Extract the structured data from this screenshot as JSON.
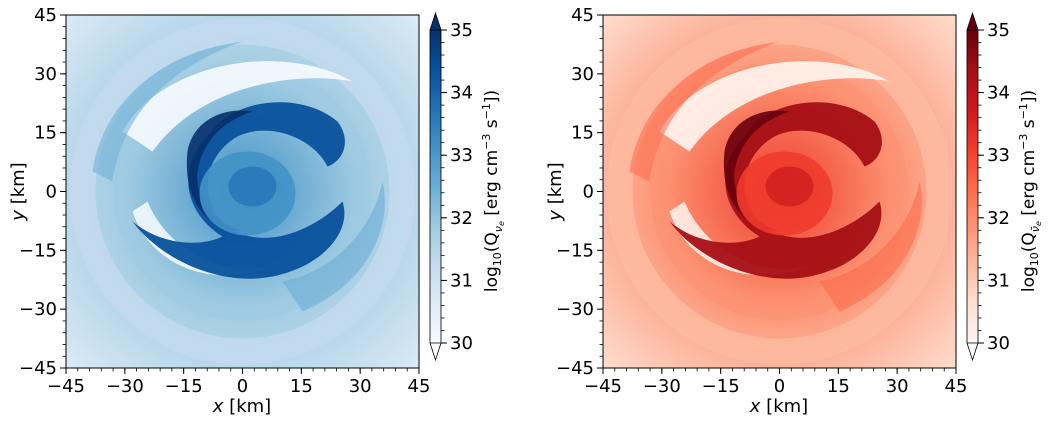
{
  "chart_data": [
    {
      "type": "heatmap",
      "colormap": "Blues",
      "colors": [
        "#f7fbff",
        "#deebf7",
        "#c6dbef",
        "#9ecae1",
        "#6baed6",
        "#4292c6",
        "#2171b5",
        "#08519c",
        "#08306b"
      ],
      "x_ticks": [
        "−45",
        "−30",
        "−15",
        "0",
        "15",
        "30",
        "45"
      ],
      "y_ticks": [
        "−45",
        "−30",
        "−15",
        "0",
        "15",
        "30",
        "45"
      ],
      "xlim": [
        -45,
        45
      ],
      "ylim": [
        -45,
        45
      ],
      "xlabel_var": "x",
      "xlabel_unit": " [km]",
      "ylabel_var": "y",
      "ylabel_unit": " [km]",
      "colorbar": {
        "ticks": [
          "30",
          "31",
          "32",
          "33",
          "34",
          "35"
        ],
        "range": [
          30,
          35
        ],
        "extend": "both",
        "label_log": "log",
        "label_log_sub": "10",
        "label_q_open": "(Q",
        "label_q_sub": "ν",
        "label_q_subsub": "e",
        "label_units": " [erg cm",
        "label_exp1": "−3",
        "label_s": " s",
        "label_exp2": "−1",
        "label_close": "])"
      }
    },
    {
      "type": "heatmap",
      "colormap": "Reds",
      "colors": [
        "#fff5f0",
        "#fee0d2",
        "#fcbba1",
        "#fc9272",
        "#fb6a4a",
        "#ef3b2c",
        "#cb181d",
        "#a50f15",
        "#67000d"
      ],
      "x_ticks": [
        "−45",
        "−30",
        "−15",
        "0",
        "15",
        "30",
        "45"
      ],
      "y_ticks": [
        "−45",
        "−30",
        "−15",
        "0",
        "15",
        "30",
        "45"
      ],
      "xlim": [
        -45,
        45
      ],
      "ylim": [
        -45,
        45
      ],
      "xlabel_var": "x",
      "xlabel_unit": " [km]",
      "ylabel_var": "y",
      "ylabel_unit": " [km]",
      "colorbar": {
        "ticks": [
          "30",
          "31",
          "32",
          "33",
          "34",
          "35"
        ],
        "range": [
          30,
          35
        ],
        "extend": "both",
        "label_log": "log",
        "label_log_sub": "10",
        "label_q_open": "(Q",
        "label_q_sub": "ν̄",
        "label_q_subsub": "e",
        "label_units": " [erg cm",
        "label_exp1": "−3",
        "label_s": " s",
        "label_exp2": "−1",
        "label_close": "])"
      }
    }
  ]
}
